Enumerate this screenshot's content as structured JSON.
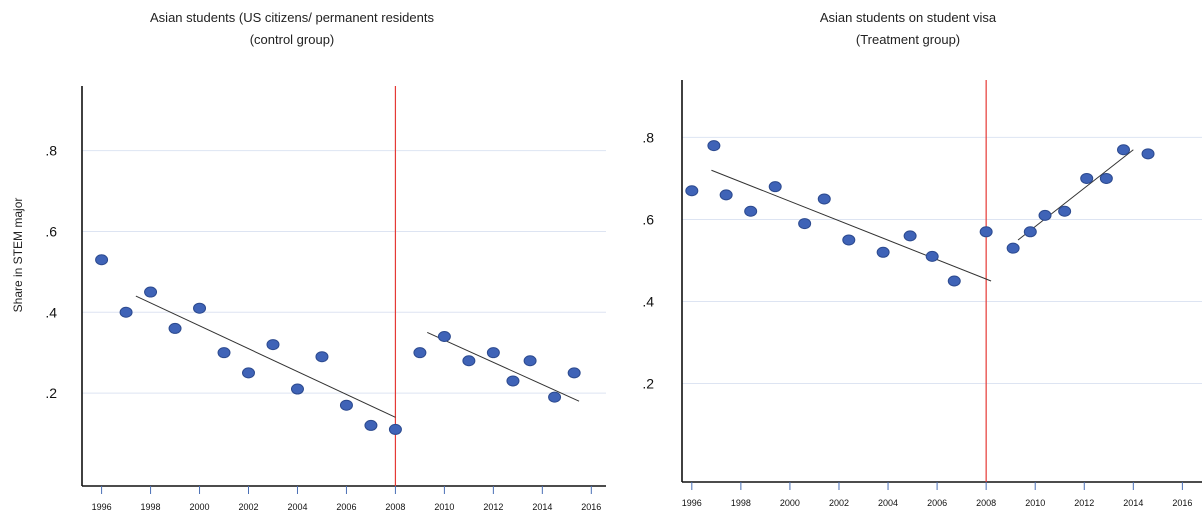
{
  "ylabel": "Share in STEM major",
  "colors": {
    "point": "#3f63b7",
    "point_stroke": "#2c4a8f",
    "fit": "#333333",
    "cutoff": "#e53935",
    "grid": "#dde4f2",
    "axis": "#111111"
  },
  "chart_data": [
    {
      "type": "scatter",
      "title": [
        "Asian students (US citizens/ permanent residents",
        "(control group)"
      ],
      "xticks": [
        "1996",
        "1998",
        "2000",
        "2002",
        "2004",
        "2006",
        "2008",
        "2010",
        "2012",
        "2014",
        "2016"
      ],
      "yticks": [
        ".2",
        ".4",
        ".6",
        ".8"
      ],
      "xlim": [
        1995.2,
        2016.6
      ],
      "ylim": [
        -0.03,
        0.96
      ],
      "grid": true,
      "cutoff_x": 2008,
      "points": [
        [
          1996,
          0.53
        ],
        [
          1997,
          0.4
        ],
        [
          1998,
          0.45
        ],
        [
          1999,
          0.36
        ],
        [
          2000,
          0.41
        ],
        [
          2001,
          0.3
        ],
        [
          2002,
          0.25
        ],
        [
          2003,
          0.32
        ],
        [
          2004,
          0.21
        ],
        [
          2005,
          0.29
        ],
        [
          2006,
          0.17
        ],
        [
          2007,
          0.12
        ],
        [
          2008,
          0.11
        ],
        [
          2009,
          0.3
        ],
        [
          2010,
          0.34
        ],
        [
          2011,
          0.28
        ],
        [
          2012,
          0.3
        ],
        [
          2012.8,
          0.23
        ],
        [
          2013.5,
          0.28
        ],
        [
          2014.5,
          0.19
        ],
        [
          2015.3,
          0.25
        ]
      ],
      "fit_lines": [
        {
          "x": [
            1997.4,
            2008
          ],
          "y": [
            0.44,
            0.14
          ]
        },
        {
          "x": [
            2009.3,
            2015.5
          ],
          "y": [
            0.35,
            0.18
          ]
        }
      ]
    },
    {
      "type": "scatter",
      "title": [
        "Asian students on student visa",
        "(Treatment group)"
      ],
      "xticks": [
        "1996",
        "1998",
        "2000",
        "2002",
        "2004",
        "2006",
        "2008",
        "2010",
        "2012",
        "2014",
        "2016"
      ],
      "yticks": [
        ".2",
        ".4",
        ".6",
        ".8"
      ],
      "xlim": [
        1995.6,
        2016.8
      ],
      "ylim": [
        -0.04,
        0.94
      ],
      "grid": true,
      "cutoff_x": 2008,
      "points": [
        [
          1996,
          0.67
        ],
        [
          1996.9,
          0.78
        ],
        [
          1997.4,
          0.66
        ],
        [
          1998.4,
          0.62
        ],
        [
          1999.4,
          0.68
        ],
        [
          2000.6,
          0.59
        ],
        [
          2001.4,
          0.65
        ],
        [
          2002.4,
          0.55
        ],
        [
          2003.8,
          0.52
        ],
        [
          2004.9,
          0.56
        ],
        [
          2005.8,
          0.51
        ],
        [
          2006.7,
          0.45
        ],
        [
          2008,
          0.57
        ],
        [
          2009.1,
          0.53
        ],
        [
          2009.8,
          0.57
        ],
        [
          2010.4,
          0.61
        ],
        [
          2011.2,
          0.62
        ],
        [
          2012.1,
          0.7
        ],
        [
          2012.9,
          0.7
        ],
        [
          2013.6,
          0.77
        ],
        [
          2014.6,
          0.76
        ]
      ],
      "fit_lines": [
        {
          "x": [
            1996.8,
            2008.2
          ],
          "y": [
            0.72,
            0.45
          ]
        },
        {
          "x": [
            2009.3,
            2014
          ],
          "y": [
            0.55,
            0.77
          ]
        }
      ]
    }
  ]
}
